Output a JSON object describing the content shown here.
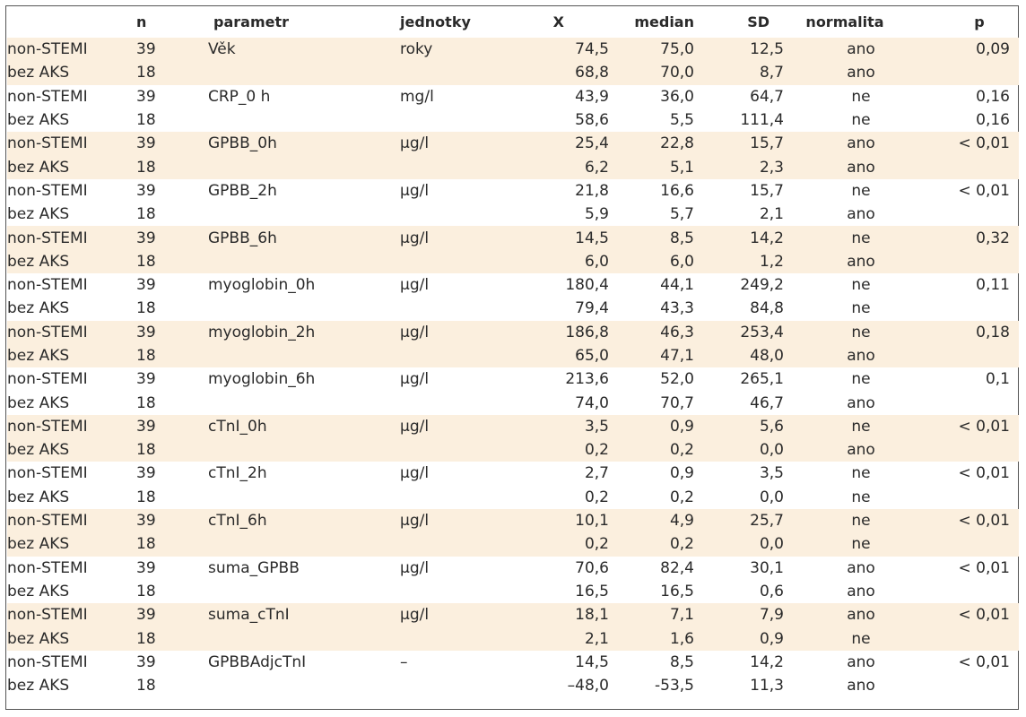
{
  "headers": {
    "group": "",
    "n": "n",
    "parametr": "parametr",
    "jednotky": "jednotky",
    "x": "X",
    "median": "median",
    "sd": "SD",
    "normalita": "normalita",
    "p": "p"
  },
  "rows": [
    {
      "group": "non-STEMI",
      "n": "39",
      "param": "Věk",
      "unit": "roky",
      "x": "74,5",
      "median": "75,0",
      "sd": "12,5",
      "norm": "ano",
      "p": "0,09"
    },
    {
      "group": "bez AKS",
      "n": "18",
      "param": "",
      "unit": "",
      "x": "68,8",
      "median": "70,0",
      "sd": "8,7",
      "norm": "ano",
      "p": ""
    },
    {
      "group": "non-STEMI",
      "n": "39",
      "param": "CRP_0 h",
      "unit": "mg/l",
      "x": "43,9",
      "median": "36,0",
      "sd": "64,7",
      "norm": "ne",
      "p": "0,16"
    },
    {
      "group": "bez AKS",
      "n": "18",
      "param": "",
      "unit": "",
      "x": "58,6",
      "median": "5,5",
      "sd": "111,4",
      "norm": "ne",
      "p": "0,16"
    },
    {
      "group": "non-STEMI",
      "n": "39",
      "param": "GPBB_0h",
      "unit": "μg/l",
      "x": "25,4",
      "median": "22,8",
      "sd": "15,7",
      "norm": "ano",
      "p": "< 0,01"
    },
    {
      "group": "bez AKS",
      "n": "18",
      "param": "",
      "unit": "",
      "x": "6,2",
      "median": "5,1",
      "sd": "2,3",
      "norm": "ano",
      "p": ""
    },
    {
      "group": "non-STEMI",
      "n": "39",
      "param": "GPBB_2h",
      "unit": "μg/l",
      "x": "21,8",
      "median": "16,6",
      "sd": "15,7",
      "norm": "ne",
      "p": "< 0,01"
    },
    {
      "group": "bez AKS",
      "n": "18",
      "param": "",
      "unit": "",
      "x": "5,9",
      "median": "5,7",
      "sd": "2,1",
      "norm": "ano",
      "p": ""
    },
    {
      "group": "non-STEMI",
      "n": "39",
      "param": "GPBB_6h",
      "unit": "μg/l",
      "x": "14,5",
      "median": "8,5",
      "sd": "14,2",
      "norm": "ne",
      "p": "0,32"
    },
    {
      "group": "bez AKS",
      "n": "18",
      "param": "",
      "unit": "",
      "x": "6,0",
      "median": "6,0",
      "sd": "1,2",
      "norm": "ano",
      "p": ""
    },
    {
      "group": "non-STEMI",
      "n": "39",
      "param": "myoglobin_0h",
      "unit": "μg/l",
      "x": "180,4",
      "median": "44,1",
      "sd": "249,2",
      "norm": "ne",
      "p": "0,11"
    },
    {
      "group": "bez AKS",
      "n": "18",
      "param": "",
      "unit": "",
      "x": "79,4",
      "median": "43,3",
      "sd": "84,8",
      "norm": "ne",
      "p": ""
    },
    {
      "group": "non-STEMI",
      "n": "39",
      "param": "myoglobin_2h",
      "unit": "μg/l",
      "x": "186,8",
      "median": "46,3",
      "sd": "253,4",
      "norm": "ne",
      "p": "0,18"
    },
    {
      "group": "bez AKS",
      "n": "18",
      "param": "",
      "unit": "",
      "x": "65,0",
      "median": "47,1",
      "sd": "48,0",
      "norm": "ano",
      "p": ""
    },
    {
      "group": "non-STEMI",
      "n": "39",
      "param": "myoglobin_6h",
      "unit": "μg/l",
      "x": "213,6",
      "median": "52,0",
      "sd": "265,1",
      "norm": "ne",
      "p": "0,1"
    },
    {
      "group": "bez AKS",
      "n": "18",
      "param": "",
      "unit": "",
      "x": "74,0",
      "median": "70,7",
      "sd": "46,7",
      "norm": "ano",
      "p": ""
    },
    {
      "group": "non-STEMI",
      "n": "39",
      "param": "cTnI_0h",
      "unit": "μg/l",
      "x": "3,5",
      "median": "0,9",
      "sd": "5,6",
      "norm": "ne",
      "p": "< 0,01"
    },
    {
      "group": "bez AKS",
      "n": "18",
      "param": "",
      "unit": "",
      "x": "0,2",
      "median": "0,2",
      "sd": "0,0",
      "norm": "ano",
      "p": ""
    },
    {
      "group": "non-STEMI",
      "n": "39",
      "param": "cTnI_2h",
      "unit": "μg/l",
      "x": "2,7",
      "median": "0,9",
      "sd": "3,5",
      "norm": "ne",
      "p": "< 0,01"
    },
    {
      "group": "bez AKS",
      "n": "18",
      "param": "",
      "unit": "",
      "x": "0,2",
      "median": "0,2",
      "sd": "0,0",
      "norm": "ne",
      "p": ""
    },
    {
      "group": "non-STEMI",
      "n": "39",
      "param": "cTnI_6h",
      "unit": "μg/l",
      "x": "10,1",
      "median": "4,9",
      "sd": "25,7",
      "norm": "ne",
      "p": "< 0,01"
    },
    {
      "group": "bez AKS",
      "n": "18",
      "param": "",
      "unit": "",
      "x": "0,2",
      "median": "0,2",
      "sd": "0,0",
      "norm": "ne",
      "p": ""
    },
    {
      "group": "non-STEMI",
      "n": "39",
      "param": "suma_GPBB",
      "unit": "μg/l",
      "x": "70,6",
      "median": "82,4",
      "sd": "30,1",
      "norm": "ano",
      "p": "< 0,01"
    },
    {
      "group": "bez AKS",
      "n": "18",
      "param": "",
      "unit": "",
      "x": "16,5",
      "median": "16,5",
      "sd": "0,6",
      "norm": "ano",
      "p": ""
    },
    {
      "group": "non-STEMI",
      "n": "39",
      "param": "suma_cTnI",
      "unit": "μg/l",
      "x": "18,1",
      "median": "7,1",
      "sd": "7,9",
      "norm": "ano",
      "p": "< 0,01"
    },
    {
      "group": "bez AKS",
      "n": "18",
      "param": "",
      "unit": "",
      "x": "2,1",
      "median": "1,6",
      "sd": "0,9",
      "norm": "ne",
      "p": ""
    },
    {
      "group": "non-STEMI",
      "n": "39",
      "param": "GPBBAdjcTnI",
      "unit": "–",
      "x": "14,5",
      "median": "8,5",
      "sd": "14,2",
      "norm": "ano",
      "p": "< 0,01"
    },
    {
      "group": "bez AKS",
      "n": "18",
      "param": "",
      "unit": "",
      "x": "–48,0",
      "median": "-53,5",
      "sd": "11,3",
      "norm": "ano",
      "p": ""
    }
  ]
}
